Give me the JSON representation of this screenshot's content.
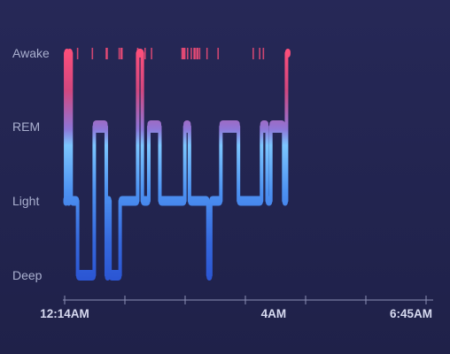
{
  "chart_data": {
    "type": "hypnogram",
    "stages": [
      "Awake",
      "REM",
      "Light",
      "Deep"
    ],
    "time_labels": [
      "12:14AM",
      "4AM",
      "6:45AM"
    ],
    "time_label_values": [
      0,
      226,
      391
    ],
    "x_range": [
      0,
      391
    ],
    "x_unit": "minutes after 12:14AM",
    "segments": [
      {
        "stage": "Light",
        "start": 0,
        "end": 1
      },
      {
        "stage": "Awake",
        "start": 1,
        "end": 3
      },
      {
        "stage": "Light",
        "start": 3,
        "end": 4
      },
      {
        "stage": "Awake",
        "start": 4,
        "end": 7
      },
      {
        "stage": "Light",
        "start": 7,
        "end": 14
      },
      {
        "stage": "Deep",
        "start": 14,
        "end": 32
      },
      {
        "stage": "REM",
        "start": 32,
        "end": 45
      },
      {
        "stage": "Deep",
        "start": 45,
        "end": 46
      },
      {
        "stage": "Light",
        "start": 46,
        "end": 49
      },
      {
        "stage": "Deep",
        "start": 49,
        "end": 60
      },
      {
        "stage": "Light",
        "start": 60,
        "end": 79
      },
      {
        "stage": "Awake",
        "start": 79,
        "end": 84
      },
      {
        "stage": "Light",
        "start": 84,
        "end": 91
      },
      {
        "stage": "REM",
        "start": 91,
        "end": 103
      },
      {
        "stage": "Light",
        "start": 103,
        "end": 130
      },
      {
        "stage": "REM",
        "start": 130,
        "end": 135
      },
      {
        "stage": "Light",
        "start": 135,
        "end": 155
      },
      {
        "stage": "Deep",
        "start": 155,
        "end": 158
      },
      {
        "stage": "Light",
        "start": 158,
        "end": 169
      },
      {
        "stage": "REM",
        "start": 169,
        "end": 188
      },
      {
        "stage": "Light",
        "start": 188,
        "end": 213
      },
      {
        "stage": "REM",
        "start": 213,
        "end": 219
      },
      {
        "stage": "Light",
        "start": 219,
        "end": 223
      },
      {
        "stage": "REM",
        "start": 223,
        "end": 237
      },
      {
        "stage": "Light",
        "start": 237,
        "end": 240
      },
      {
        "stage": "Awake",
        "start": 240,
        "end": 241
      }
    ],
    "awake_ticks": [
      14,
      30,
      45,
      46,
      59,
      61,
      62,
      79,
      87,
      94,
      127,
      128,
      129,
      130,
      133,
      137,
      140,
      141,
      143,
      144,
      146,
      154,
      166,
      204,
      211,
      215
    ],
    "colors": {
      "background": "#232553",
      "awake": "#ff4f7a",
      "rem": "#7cc6ff",
      "light": "#3f8cf0",
      "deep": "#2b56d4",
      "axis": "#8c90b5",
      "stage_label": "#aab0cf",
      "time_label": "#d7daf0"
    },
    "grid": false,
    "legend": "none"
  }
}
